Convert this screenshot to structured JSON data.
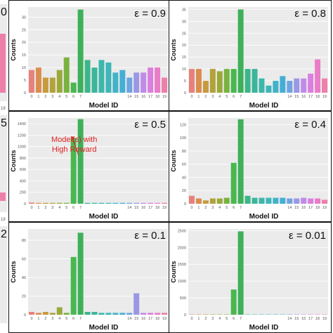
{
  "chart_data": [
    {
      "type": "bar",
      "epsilon_label": "ε = 0.9",
      "xlabel": "Model ID",
      "ylabel": "Counts",
      "categories": [
        "0",
        "1",
        "2",
        "3",
        "4",
        "5",
        "6",
        "7",
        "8",
        "9",
        "10",
        "11",
        "12",
        "13",
        "14",
        "15",
        "16",
        "17",
        "18",
        "19"
      ],
      "tick_labels": [
        "0",
        "1",
        "2",
        "3",
        "4",
        "5",
        "6",
        "7",
        "",
        "",
        "",
        "",
        "",
        "",
        "14",
        "15",
        "16",
        "17",
        "18",
        "19"
      ],
      "values": [
        9,
        10,
        6,
        6,
        9,
        14,
        4,
        33,
        13,
        10,
        13,
        12,
        8,
        9,
        6,
        8,
        8,
        10,
        10,
        6
      ],
      "ylim": [
        0,
        34
      ],
      "yticks": [
        0,
        5,
        10,
        15,
        20,
        25,
        30
      ]
    },
    {
      "type": "bar",
      "epsilon_label": "ε = 0.8",
      "xlabel": "Model ID",
      "ylabel": "Counts",
      "categories": [
        "0",
        "1",
        "2",
        "3",
        "4",
        "5",
        "6",
        "7",
        "8",
        "9",
        "10",
        "11",
        "12",
        "13",
        "14",
        "15",
        "16",
        "17",
        "18",
        "19"
      ],
      "tick_labels": [
        "0",
        "1",
        "2",
        "3",
        "4",
        "5",
        "6",
        "7",
        "",
        "",
        "",
        "",
        "",
        "",
        "14",
        "15",
        "16",
        "17",
        "18",
        "19"
      ],
      "values": [
        10,
        10,
        5,
        10,
        9,
        10,
        10,
        35,
        10,
        10,
        6,
        3,
        5,
        7,
        5,
        6,
        6,
        8,
        14,
        6
      ],
      "ylim": [
        0,
        36
      ],
      "yticks": [
        0,
        5,
        10,
        15,
        20,
        25,
        30,
        35
      ]
    },
    {
      "type": "bar",
      "epsilon_label": "ε = 0.5",
      "xlabel": "Model ID",
      "ylabel": "Counts",
      "categories": [
        "0",
        "1",
        "2",
        "3",
        "4",
        "5",
        "6",
        "7",
        "8",
        "9",
        "10",
        "11",
        "12",
        "13",
        "14",
        "15",
        "16",
        "17",
        "18",
        "19"
      ],
      "tick_labels": [
        "0",
        "1",
        "2",
        "3",
        "4",
        "5",
        "6",
        "7",
        "",
        "",
        "",
        "",
        "",
        "",
        "14",
        "15",
        "16",
        "17",
        "18",
        "19"
      ],
      "values": [
        20,
        15,
        15,
        15,
        15,
        15,
        1150,
        1480,
        15,
        15,
        15,
        15,
        15,
        15,
        15,
        15,
        15,
        15,
        15,
        15
      ],
      "ylim": [
        0,
        1500
      ],
      "yticks": [
        0,
        200,
        400,
        600,
        800,
        1000,
        1200,
        1400
      ],
      "annotation": "Model(s) with High Reward"
    },
    {
      "type": "bar",
      "epsilon_label": "ε = 0.4",
      "xlabel": "Model ID",
      "ylabel": "Counts",
      "categories": [
        "0",
        "1",
        "2",
        "3",
        "4",
        "5",
        "6",
        "7",
        "8",
        "9",
        "10",
        "11",
        "12",
        "13",
        "14",
        "15",
        "16",
        "17",
        "18",
        "19"
      ],
      "tick_labels": [
        "0",
        "1",
        "2",
        "3",
        "4",
        "5",
        "6",
        "7",
        "",
        "",
        "",
        "",
        "",
        "",
        "14",
        "15",
        "16",
        "17",
        "18",
        "19"
      ],
      "values": [
        12,
        8,
        5,
        8,
        8,
        9,
        62,
        128,
        12,
        9,
        9,
        9,
        9,
        9,
        8,
        8,
        9,
        8,
        8,
        6
      ],
      "ylim": [
        0,
        130
      ],
      "yticks": [
        0,
        20,
        40,
        60,
        80,
        100,
        120
      ]
    },
    {
      "type": "bar",
      "epsilon_label": "ε = 0.1",
      "xlabel": "Model ID",
      "ylabel": "Counts",
      "categories": [
        "0",
        "1",
        "2",
        "3",
        "4",
        "5",
        "6",
        "7",
        "8",
        "9",
        "10",
        "11",
        "12",
        "13",
        "14",
        "15",
        "16",
        "17",
        "18",
        "19"
      ],
      "tick_labels": [
        "0",
        "1",
        "2",
        "3",
        "4",
        "5",
        "6",
        "7",
        "",
        "",
        "",
        "",
        "",
        "",
        "14",
        "15",
        "16",
        "17",
        "18",
        "19"
      ],
      "values": [
        3,
        2,
        3,
        2,
        8,
        2,
        62,
        88,
        3,
        3,
        2,
        2,
        2,
        2,
        2,
        23,
        2,
        2,
        2,
        2
      ],
      "ylim": [
        0,
        92
      ],
      "yticks": [
        0,
        20,
        40,
        60,
        80
      ]
    },
    {
      "type": "bar",
      "epsilon_label": "ε = 0.01",
      "xlabel": "Model ID",
      "ylabel": "Counts",
      "categories": [
        "0",
        "1",
        "2",
        "3",
        "4",
        "5",
        "6",
        "7",
        "8",
        "9",
        "10",
        "11",
        "12",
        "13",
        "14",
        "15",
        "16",
        "17",
        "18",
        "19"
      ],
      "tick_labels": [
        "0",
        "1",
        "2",
        "3",
        "4",
        "5",
        "6",
        "7",
        "",
        "",
        "",
        "",
        "",
        "",
        "14",
        "15",
        "16",
        "17",
        "18",
        "19"
      ],
      "values": [
        10,
        10,
        10,
        10,
        10,
        10,
        750,
        2480,
        10,
        10,
        10,
        10,
        10,
        10,
        10,
        10,
        10,
        10,
        10,
        10
      ],
      "ylim": [
        0,
        2550
      ],
      "yticks": [
        0,
        500,
        1000,
        1500,
        2000,
        2500
      ]
    }
  ],
  "left_fragments": [
    "0",
    "",
    "5",
    "",
    "2",
    ""
  ],
  "left_ticks": [
    [
      "19"
    ],
    [],
    [
      "19"
    ],
    [],
    [],
    []
  ],
  "colors": [
    "#e8817b",
    "#d98d4f",
    "#c79a3e",
    "#b2a23a",
    "#9aa93a",
    "#79b23f",
    "#49b84f",
    "#3eb05a",
    "#3db58a",
    "#3cb59b",
    "#3db7ac",
    "#3fb6ba",
    "#41b3c6",
    "#44aed6",
    "#6ea4e0",
    "#9a97e6",
    "#c08be8",
    "#db7fdf",
    "#ea7cc8",
    "#ee7faa"
  ],
  "panel_bg": "#ebebeb",
  "annotation_color": "#e02020"
}
